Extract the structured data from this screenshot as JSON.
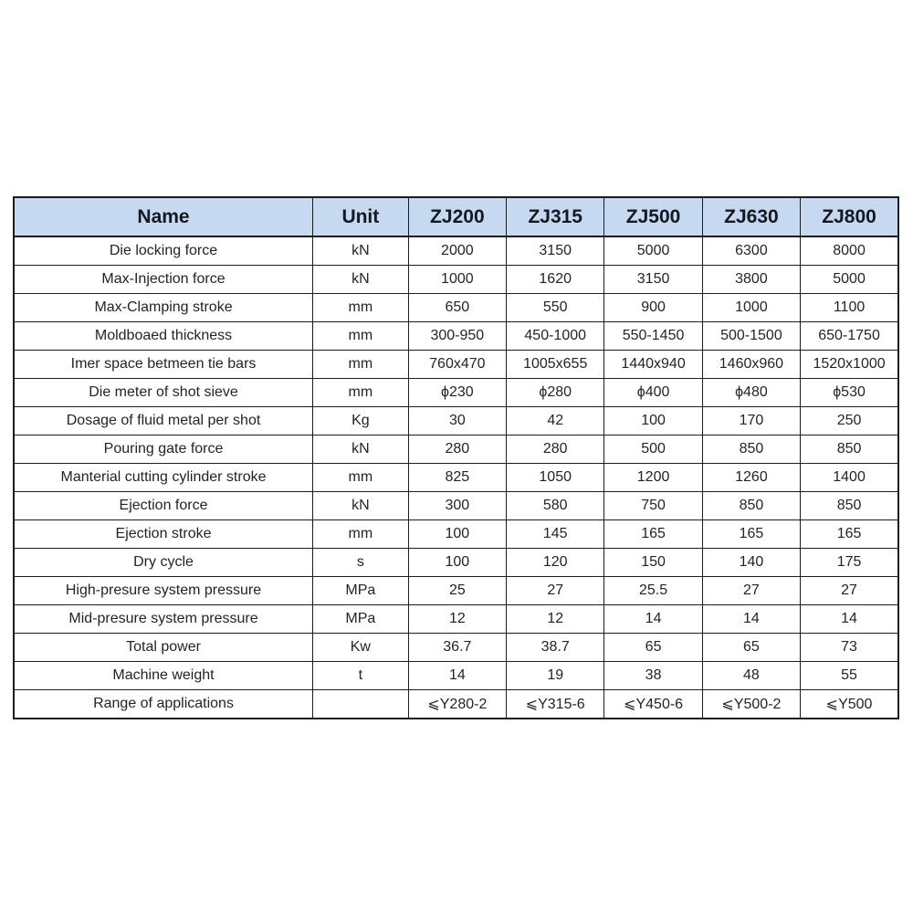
{
  "page": {
    "background_color": "#ffffff"
  },
  "table": {
    "header_bg_color": "#c6d9f0",
    "border_color": "#1c1c1c",
    "headers": [
      "Name",
      "Unit",
      "ZJ200",
      "ZJ315",
      "ZJ500",
      "ZJ630",
      "ZJ800"
    ],
    "rows": [
      {
        "name": "Die locking force",
        "unit": "kN",
        "values": [
          "2000",
          "3150",
          "5000",
          "6300",
          "8000"
        ]
      },
      {
        "name": "Max-Injection force",
        "unit": "kN",
        "values": [
          "1000",
          "1620",
          "3150",
          "3800",
          "5000"
        ]
      },
      {
        "name": "Max-Clamping stroke",
        "unit": "mm",
        "values": [
          "650",
          "550",
          "900",
          "1000",
          "1100"
        ]
      },
      {
        "name": "Moldboaed thickness",
        "unit": "mm",
        "values": [
          "300-950",
          "450-1000",
          "550-1450",
          "500-1500",
          "650-1750"
        ]
      },
      {
        "name": "Imer space betmeen tie bars",
        "unit": "mm",
        "values": [
          "760x470",
          "1005x655",
          "1440x940",
          "1460x960",
          "1520x1000"
        ]
      },
      {
        "name": "Die meter of shot sieve",
        "unit": "mm",
        "values": [
          "ϕ230",
          "ϕ280",
          "ϕ400",
          "ϕ480",
          "ϕ530"
        ]
      },
      {
        "name": "Dosage of fluid metal per shot",
        "unit": "Kg",
        "values": [
          "30",
          "42",
          "100",
          "170",
          "250"
        ]
      },
      {
        "name": "Pouring gate force",
        "unit": "kN",
        "values": [
          "280",
          "280",
          "500",
          "850",
          "850"
        ]
      },
      {
        "name": "Manterial cutting cylinder stroke",
        "unit": "mm",
        "values": [
          "825",
          "1050",
          "1200",
          "1260",
          "1400"
        ]
      },
      {
        "name": "Ejection force",
        "unit": "kN",
        "values": [
          "300",
          "580",
          "750",
          "850",
          "850"
        ]
      },
      {
        "name": "Ejection stroke",
        "unit": "mm",
        "values": [
          "100",
          "145",
          "165",
          "165",
          "165"
        ]
      },
      {
        "name": "Dry cycle",
        "unit": "s",
        "values": [
          "100",
          "120",
          "150",
          "140",
          "175"
        ]
      },
      {
        "name": "High-presure system pressure",
        "unit": "MPa",
        "values": [
          "25",
          "27",
          "25.5",
          "27",
          "27"
        ]
      },
      {
        "name": "Mid-presure system pressure",
        "unit": "MPa",
        "values": [
          "12",
          "12",
          "14",
          "14",
          "14"
        ]
      },
      {
        "name": "Total power",
        "unit": "Kw",
        "values": [
          "36.7",
          "38.7",
          "65",
          "65",
          "73"
        ]
      },
      {
        "name": "Machine weight",
        "unit": "t",
        "values": [
          "14",
          "19",
          "38",
          "48",
          "55"
        ]
      },
      {
        "name": "Range of applications",
        "unit": "",
        "values": [
          "⩽Y280-2",
          "⩽Y315-6",
          "⩽Y450-6",
          "⩽Y500-2",
          "⩽Y500"
        ]
      }
    ]
  }
}
